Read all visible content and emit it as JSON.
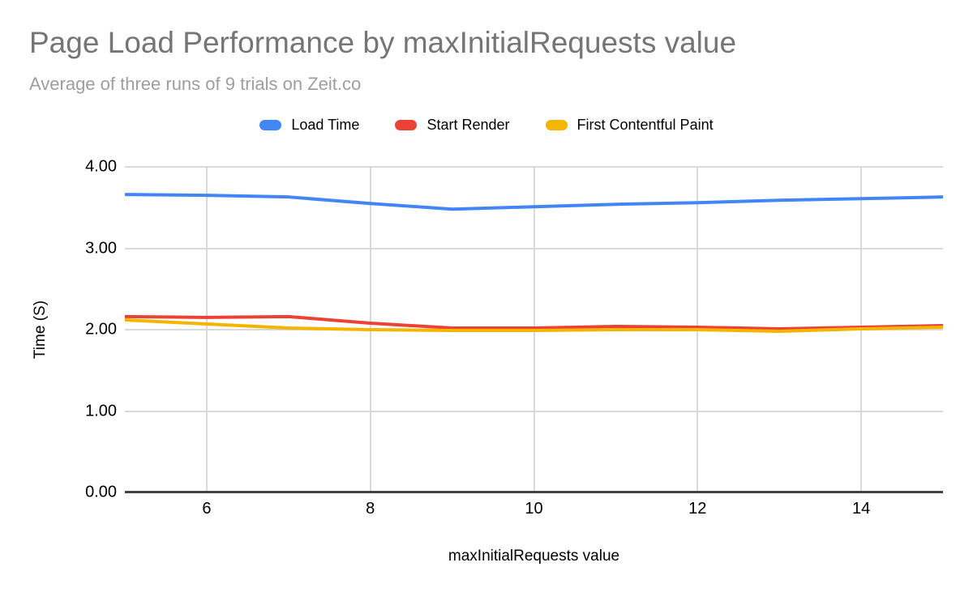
{
  "header": {
    "title": "Page Load Performance by maxInitialRequests value",
    "subtitle": "Average of three runs of 9 trials on Zeit.co",
    "title_color": "#757575",
    "subtitle_color": "#9e9e9e"
  },
  "chart_data": {
    "type": "line",
    "title": "Page Load Performance by maxInitialRequests value",
    "subtitle": "Average of three runs of 9 trials on Zeit.co",
    "xlabel": "maxInitialRequests value",
    "ylabel": "Time (S)",
    "xlim": [
      5,
      15
    ],
    "ylim": [
      0,
      4
    ],
    "grid": true,
    "legend_position": "top",
    "x": [
      5,
      6,
      7,
      8,
      9,
      10,
      11,
      12,
      13,
      14,
      15
    ],
    "series": [
      {
        "name": "Load Time",
        "color": "#4285f4",
        "values": [
          3.66,
          3.65,
          3.63,
          3.55,
          3.48,
          3.51,
          3.54,
          3.56,
          3.59,
          3.61,
          3.63
        ]
      },
      {
        "name": "Start Render",
        "color": "#ea4335",
        "values": [
          2.16,
          2.15,
          2.16,
          2.08,
          2.02,
          2.02,
          2.04,
          2.03,
          2.01,
          2.03,
          2.05
        ]
      },
      {
        "name": "First Contentful Paint",
        "color": "#f4b400",
        "values": [
          2.12,
          2.07,
          2.02,
          2.0,
          1.99,
          1.99,
          2.0,
          2.0,
          1.98,
          2.01,
          2.03
        ]
      }
    ],
    "x_ticks": [
      {
        "v": 6,
        "label": "6"
      },
      {
        "v": 8,
        "label": "8"
      },
      {
        "v": 10,
        "label": "10"
      },
      {
        "v": 12,
        "label": "12"
      },
      {
        "v": 14,
        "label": "14"
      }
    ],
    "y_ticks": [
      {
        "v": 0,
        "label": "0.00"
      },
      {
        "v": 1,
        "label": "1.00"
      },
      {
        "v": 2,
        "label": "2.00"
      },
      {
        "v": 3,
        "label": "3.00"
      },
      {
        "v": 4,
        "label": "4.00"
      }
    ],
    "gridline_color": "#d9d9d9",
    "axis_line_color": "#424242",
    "tick_label_color": "#000000",
    "line_width": 4
  }
}
